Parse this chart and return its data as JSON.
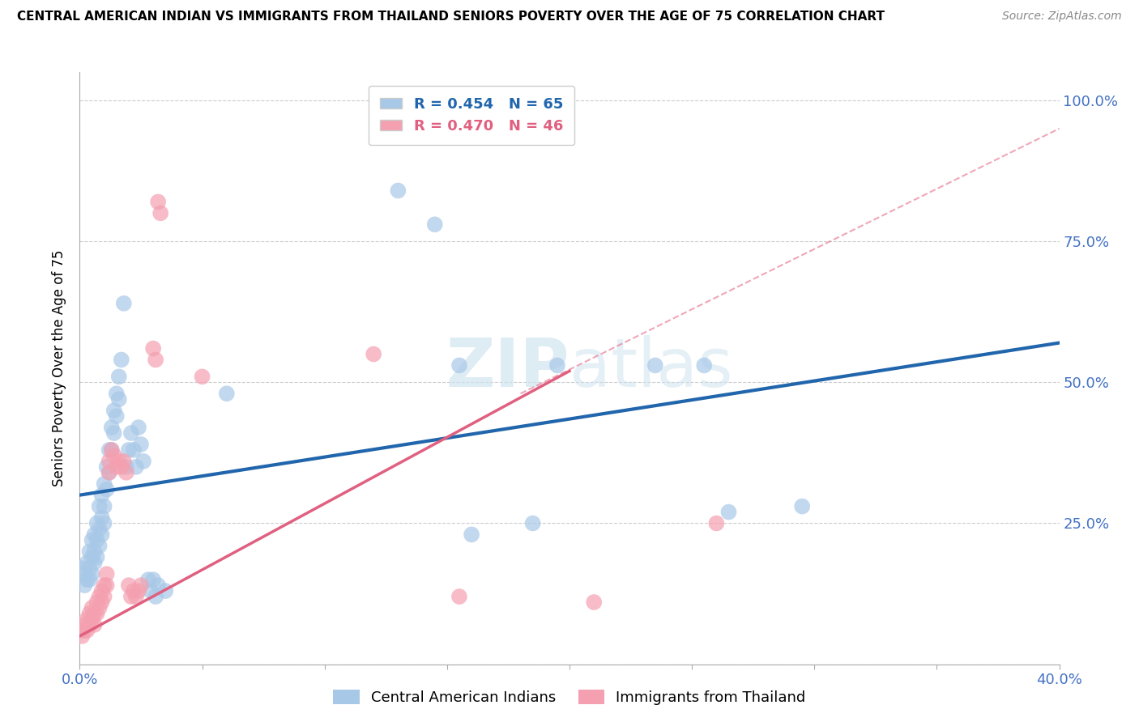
{
  "title": "CENTRAL AMERICAN INDIAN VS IMMIGRANTS FROM THAILAND SENIORS POVERTY OVER THE AGE OF 75 CORRELATION CHART",
  "source": "Source: ZipAtlas.com",
  "ylabel": "Seniors Poverty Over the Age of 75",
  "xlim": [
    0.0,
    0.4
  ],
  "ylim": [
    0.0,
    1.05
  ],
  "xticks": [
    0.0,
    0.05,
    0.1,
    0.15,
    0.2,
    0.25,
    0.3,
    0.35,
    0.4
  ],
  "ytick_positions": [
    0.0,
    0.25,
    0.5,
    0.75,
    1.0
  ],
  "ytick_labels": [
    "",
    "25.0%",
    "50.0%",
    "75.0%",
    "100.0%"
  ],
  "blue_R": 0.454,
  "blue_N": 65,
  "pink_R": 0.47,
  "pink_N": 46,
  "blue_color": "#a8c8e8",
  "pink_color": "#f4a0b0",
  "blue_line_color": "#2166ac",
  "pink_line_color": "#e06080",
  "watermark_color": "#d0e4f0",
  "blue_points": [
    [
      0.001,
      0.17
    ],
    [
      0.002,
      0.16
    ],
    [
      0.002,
      0.14
    ],
    [
      0.003,
      0.18
    ],
    [
      0.003,
      0.15
    ],
    [
      0.004,
      0.2
    ],
    [
      0.004,
      0.17
    ],
    [
      0.004,
      0.15
    ],
    [
      0.005,
      0.22
    ],
    [
      0.005,
      0.19
    ],
    [
      0.005,
      0.16
    ],
    [
      0.006,
      0.23
    ],
    [
      0.006,
      0.2
    ],
    [
      0.006,
      0.18
    ],
    [
      0.007,
      0.25
    ],
    [
      0.007,
      0.22
    ],
    [
      0.007,
      0.19
    ],
    [
      0.008,
      0.28
    ],
    [
      0.008,
      0.24
    ],
    [
      0.008,
      0.21
    ],
    [
      0.009,
      0.3
    ],
    [
      0.009,
      0.26
    ],
    [
      0.009,
      0.23
    ],
    [
      0.01,
      0.32
    ],
    [
      0.01,
      0.28
    ],
    [
      0.01,
      0.25
    ],
    [
      0.011,
      0.35
    ],
    [
      0.011,
      0.31
    ],
    [
      0.012,
      0.38
    ],
    [
      0.012,
      0.34
    ],
    [
      0.013,
      0.42
    ],
    [
      0.013,
      0.38
    ],
    [
      0.014,
      0.45
    ],
    [
      0.014,
      0.41
    ],
    [
      0.015,
      0.48
    ],
    [
      0.015,
      0.44
    ],
    [
      0.016,
      0.51
    ],
    [
      0.016,
      0.47
    ],
    [
      0.017,
      0.54
    ],
    [
      0.018,
      0.64
    ],
    [
      0.019,
      0.35
    ],
    [
      0.02,
      0.38
    ],
    [
      0.021,
      0.41
    ],
    [
      0.022,
      0.38
    ],
    [
      0.023,
      0.35
    ],
    [
      0.024,
      0.42
    ],
    [
      0.025,
      0.39
    ],
    [
      0.026,
      0.36
    ],
    [
      0.028,
      0.15
    ],
    [
      0.029,
      0.13
    ],
    [
      0.03,
      0.15
    ],
    [
      0.031,
      0.12
    ],
    [
      0.032,
      0.14
    ],
    [
      0.035,
      0.13
    ],
    [
      0.06,
      0.48
    ],
    [
      0.13,
      0.84
    ],
    [
      0.145,
      0.78
    ],
    [
      0.155,
      0.53
    ],
    [
      0.16,
      0.23
    ],
    [
      0.185,
      0.25
    ],
    [
      0.195,
      0.53
    ],
    [
      0.235,
      0.53
    ],
    [
      0.255,
      0.53
    ],
    [
      0.265,
      0.27
    ],
    [
      0.295,
      0.28
    ]
  ],
  "pink_points": [
    [
      0.001,
      0.06
    ],
    [
      0.001,
      0.05
    ],
    [
      0.002,
      0.07
    ],
    [
      0.002,
      0.06
    ],
    [
      0.003,
      0.08
    ],
    [
      0.003,
      0.06
    ],
    [
      0.004,
      0.09
    ],
    [
      0.004,
      0.07
    ],
    [
      0.005,
      0.1
    ],
    [
      0.005,
      0.08
    ],
    [
      0.006,
      0.09
    ],
    [
      0.006,
      0.07
    ],
    [
      0.007,
      0.11
    ],
    [
      0.007,
      0.09
    ],
    [
      0.008,
      0.12
    ],
    [
      0.008,
      0.1
    ],
    [
      0.009,
      0.13
    ],
    [
      0.009,
      0.11
    ],
    [
      0.01,
      0.14
    ],
    [
      0.01,
      0.12
    ],
    [
      0.011,
      0.16
    ],
    [
      0.011,
      0.14
    ],
    [
      0.012,
      0.36
    ],
    [
      0.012,
      0.34
    ],
    [
      0.013,
      0.38
    ],
    [
      0.014,
      0.37
    ],
    [
      0.015,
      0.35
    ],
    [
      0.016,
      0.36
    ],
    [
      0.017,
      0.35
    ],
    [
      0.018,
      0.36
    ],
    [
      0.019,
      0.34
    ],
    [
      0.02,
      0.14
    ],
    [
      0.021,
      0.12
    ],
    [
      0.022,
      0.13
    ],
    [
      0.023,
      0.12
    ],
    [
      0.024,
      0.13
    ],
    [
      0.025,
      0.14
    ],
    [
      0.03,
      0.56
    ],
    [
      0.031,
      0.54
    ],
    [
      0.032,
      0.82
    ],
    [
      0.033,
      0.8
    ],
    [
      0.05,
      0.51
    ],
    [
      0.12,
      0.55
    ],
    [
      0.155,
      0.12
    ],
    [
      0.21,
      0.11
    ],
    [
      0.26,
      0.25
    ]
  ],
  "blue_line_x": [
    0.0,
    0.4
  ],
  "blue_line_y": [
    0.3,
    0.57
  ],
  "pink_line_x": [
    0.0,
    0.2
  ],
  "pink_line_y": [
    0.05,
    0.52
  ],
  "pink_dash_line_x": [
    0.18,
    0.4
  ],
  "pink_dash_line_y": [
    0.48,
    0.95
  ]
}
